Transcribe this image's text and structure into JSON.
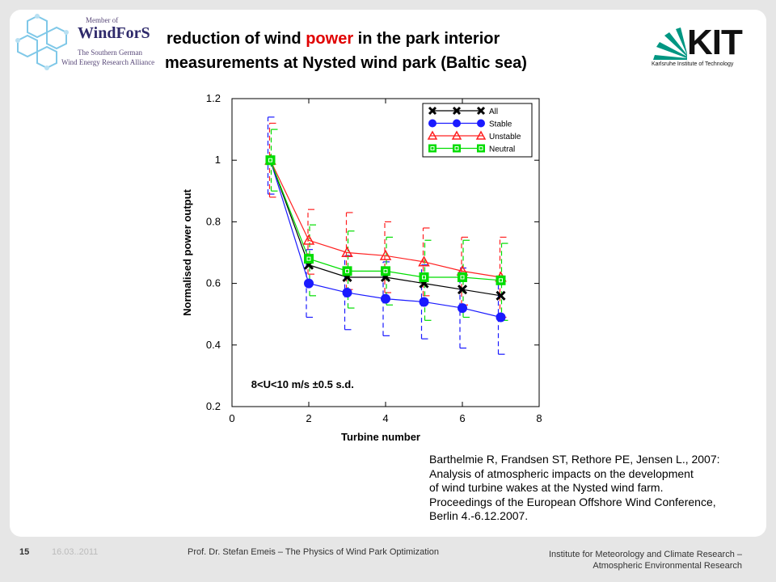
{
  "header": {
    "title_line1_pre": "reduction of wind ",
    "title_line1_highlight": "power",
    "title_line1_post": " in the park interior",
    "title_line2": "measurements at Nysted wind park (Baltic sea)",
    "highlight_color": "#e00000"
  },
  "logo_left": {
    "member_of": "Member of",
    "brand": "WindForS",
    "tagline_1": "The Southern German",
    "tagline_2": "Wind Energy Research Alliance"
  },
  "logo_right": {
    "text": "KIT",
    "subtitle": "Karlsruhe Institute of Technology"
  },
  "chart_data": {
    "type": "line",
    "xlabel": "Turbine number",
    "ylabel": "Normalised power output",
    "xlim": [
      0,
      8
    ],
    "ylim": [
      0.2,
      1.2
    ],
    "xticks": [
      0,
      2,
      4,
      6,
      8
    ],
    "yticks": [
      0.2,
      0.4,
      0.6,
      0.8,
      1,
      1.2
    ],
    "grid": false,
    "legend_position": "top-right",
    "annotation": "8<U<10 m/s ±0.5 s.d.",
    "x": [
      1,
      2,
      3,
      4,
      5,
      6,
      7
    ],
    "series": [
      {
        "name": "All",
        "color": "#000000",
        "marker": "x",
        "values": [
          1.0,
          0.66,
          0.62,
          0.62,
          0.6,
          0.58,
          0.56
        ]
      },
      {
        "name": "Stable",
        "color": "#1a1aff",
        "marker": "circle",
        "values": [
          1.0,
          0.6,
          0.57,
          0.55,
          0.54,
          0.52,
          0.49
        ],
        "err_low": [
          0.89,
          0.49,
          0.45,
          0.43,
          0.42,
          0.39,
          0.37
        ],
        "err_high": [
          1.14,
          0.71,
          0.69,
          0.67,
          0.66,
          0.65,
          0.61
        ]
      },
      {
        "name": "Unstable",
        "color": "#ff2020",
        "marker": "triangle",
        "values": [
          1.0,
          0.74,
          0.7,
          0.69,
          0.67,
          0.64,
          0.62
        ],
        "err_low": [
          0.88,
          0.63,
          0.58,
          0.57,
          0.56,
          0.53,
          0.49
        ],
        "err_high": [
          1.12,
          0.84,
          0.83,
          0.8,
          0.78,
          0.75,
          0.75
        ]
      },
      {
        "name": "Neutral",
        "color": "#00dd00",
        "marker": "square",
        "values": [
          1.0,
          0.68,
          0.64,
          0.64,
          0.62,
          0.62,
          0.61
        ],
        "err_low": [
          0.9,
          0.56,
          0.52,
          0.53,
          0.48,
          0.49,
          0.48
        ],
        "err_high": [
          1.1,
          0.79,
          0.77,
          0.75,
          0.74,
          0.74,
          0.73
        ]
      }
    ]
  },
  "reference": {
    "lines": [
      "Barthelmie R, Frandsen ST, Rethore PE, Jensen L., 2007:",
      "Analysis of atmospheric impacts on the development",
      "of wind turbine wakes at the Nysted wind farm.",
      "Proceedings of the European Offshore Wind Conference,",
      "Berlin 4.-6.12.2007."
    ]
  },
  "footer": {
    "page": "15",
    "date": "16.03..2011",
    "author": "Prof. Dr. Stefan Emeis – The Physics of Wind Park Optimization",
    "institute_1": "Institute for Meteorology and Climate Research –",
    "institute_2": "Atmospheric Environmental Research"
  }
}
